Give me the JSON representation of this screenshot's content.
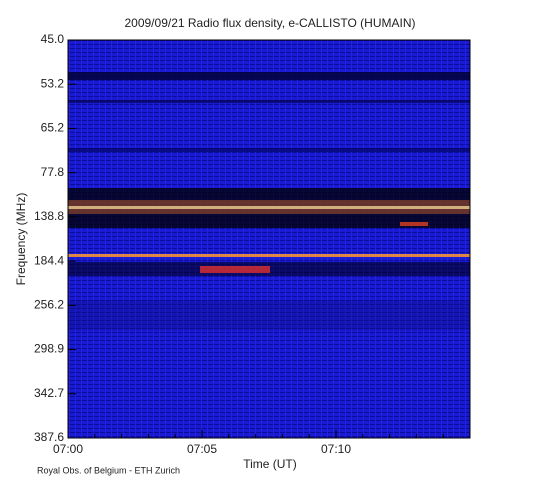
{
  "chart_data": {
    "type": "spectrogram",
    "title": "2009/09/21  Radio flux density, e-CALLISTO (HUMAIN)",
    "x_label": "Time (UT)",
    "y_label": "Frequency (MHz)",
    "footer": "Royal Obs. of Belgium - ETH Zurich",
    "xlim": [
      "07:00",
      "07:15"
    ],
    "xticks": [
      "07:00",
      "07:05",
      "07:10"
    ],
    "ylim": [
      45,
      387.6
    ],
    "yticks": [
      {
        "value": 45,
        "label": "45.0"
      },
      {
        "value": 53.2,
        "label": "53.2"
      },
      {
        "value": 65.2,
        "label": "65.2"
      },
      {
        "value": 77.8,
        "label": "77.8"
      },
      {
        "value": 138.8,
        "label": "138.8"
      },
      {
        "value": 184.4,
        "label": "184.4"
      },
      {
        "value": 256.2,
        "label": "256.2"
      },
      {
        "value": 298.9,
        "label": "298.9"
      },
      {
        "value": 342.7,
        "label": "342.7"
      },
      {
        "value": 387.6,
        "label": "387.6"
      }
    ]
  }
}
